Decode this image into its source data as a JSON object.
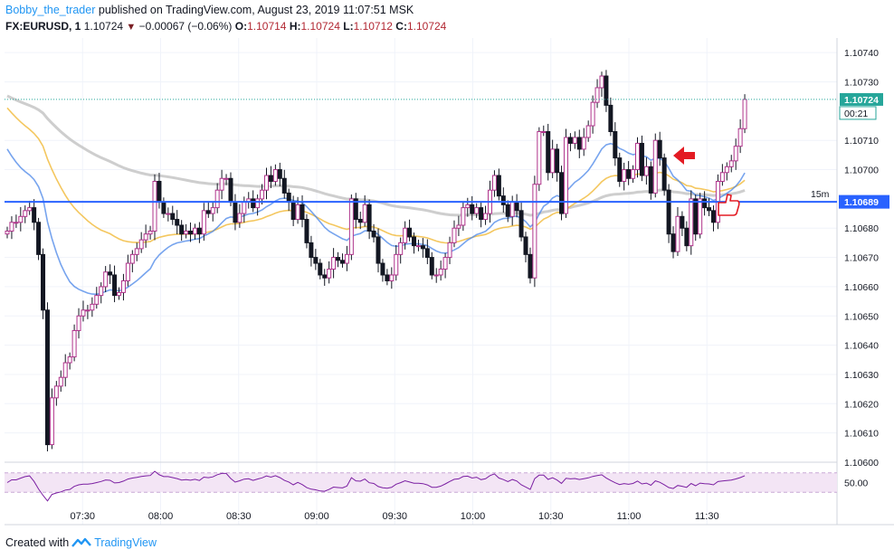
{
  "header": {
    "author": "Bobby_the_trader",
    "published_text": "published on TradingView.com, August 23, 2019 11:07:51 MSK",
    "symbol": "FX:EURUSD, 1",
    "last": "1.10724",
    "change": "−0.00067 (−0.06%)",
    "o_label": "O:",
    "o_value": "1.10714",
    "h_label": "H:",
    "h_value": "1.10724",
    "l_label": "L:",
    "l_value": "1.10712",
    "c_label": "C:",
    "c_value": "1.10724"
  },
  "footer": {
    "created_with": "Created with",
    "brand": "TradingView"
  },
  "colors": {
    "candle_body": "#131722",
    "candle_accent": "#b0348c",
    "hline": "#2962ff",
    "last_line": "#26a69a",
    "ma_fast": "#4a86e8",
    "ma_mid": "#f0b429",
    "ma_slow": "#bdbdbd",
    "rsi": "#7b1fa2",
    "rsi_band": "#f3e5f5",
    "arrow": "#e31b23"
  },
  "chart_data": {
    "type": "candlestick",
    "price_axis": {
      "ticks": [
        "1.10740",
        "1.10730",
        "1.10710",
        "1.10700",
        "1.10680",
        "1.10670",
        "1.10660",
        "1.10650",
        "1.10640",
        "1.10630",
        "1.10620",
        "1.10610",
        "1.10600"
      ],
      "range": [
        1.106,
        1.10745
      ]
    },
    "time_axis": {
      "ticks": [
        "07:30",
        "08:00",
        "08:30",
        "09:00",
        "09:30",
        "10:00",
        "10:30",
        "11:00",
        "11:30"
      ],
      "range_minutes": [
        420,
        740
      ]
    },
    "last_price_label": "1.10724",
    "last_price_countdown": "00:21",
    "horizontal_line": {
      "price": 1.10689,
      "label": "1.10689",
      "timeframe": "15m"
    },
    "rsi": {
      "tick": "50.00",
      "upper": 70,
      "lower": 30
    },
    "annotations": [
      "arrow pointing left at ~10:48",
      "thumbs-up marker at ~11:00 near 1.10689"
    ],
    "closes": [
      1.10679,
      1.10682,
      1.10682,
      1.10684,
      1.10686,
      1.10687,
      1.10682,
      1.10671,
      1.10652,
      1.10606,
      1.10622,
      1.10626,
      1.10629,
      1.10634,
      1.10636,
      1.10645,
      1.1065,
      1.10652,
      1.10652,
      1.10654,
      1.10657,
      1.1066,
      1.10665,
      1.10664,
      1.10657,
      1.10658,
      1.10662,
      1.10668,
      1.10671,
      1.10673,
      1.10676,
      1.10678,
      1.10679,
      1.10696,
      1.10689,
      1.10685,
      1.10685,
      1.10683,
      1.10681,
      1.10678,
      1.10679,
      1.10678,
      1.1068,
      1.10678,
      1.10686,
      1.10685,
      1.10687,
      1.10693,
      1.10697,
      1.10697,
      1.10689,
      1.10682,
      1.10685,
      1.10689,
      1.1069,
      1.10687,
      1.1069,
      1.10693,
      1.10698,
      1.10696,
      1.107,
      1.10697,
      1.10692,
      1.10689,
      1.10683,
      1.10688,
      1.10683,
      1.10675,
      1.1067,
      1.10668,
      1.10664,
      1.10663,
      1.10666,
      1.1067,
      1.10669,
      1.10668,
      1.10671,
      1.1069,
      1.10683,
      1.10682,
      1.10688,
      1.10679,
      1.10677,
      1.10668,
      1.10664,
      1.10662,
      1.10664,
      1.10671,
      1.10675,
      1.1068,
      1.10677,
      1.10674,
      1.10674,
      1.10673,
      1.1067,
      1.10664,
      1.10664,
      1.10666,
      1.1067,
      1.10675,
      1.1068,
      1.10681,
      1.10687,
      1.10688,
      1.10685,
      1.10687,
      1.10683,
      1.10685,
      1.10693,
      1.10698,
      1.10691,
      1.10688,
      1.10684,
      1.10689,
      1.10686,
      1.10677,
      1.10671,
      1.10663,
      1.10695,
      1.10713,
      1.10713,
      1.10699,
      1.10707,
      1.10699,
      1.10685,
      1.10711,
      1.10709,
      1.10711,
      1.10707,
      1.10711,
      1.10715,
      1.10723,
      1.10728,
      1.10732,
      1.10722,
      1.10713,
      1.10704,
      1.10696,
      1.107,
      1.10697,
      1.107,
      1.10709,
      1.10698,
      1.10701,
      1.10692,
      1.1071,
      1.10704,
      1.10693,
      1.10678,
      1.10672,
      1.10684,
      1.1068,
      1.10674,
      1.1069,
      1.10678,
      1.1069,
      1.10687,
      1.10686,
      1.10682,
      1.10696,
      1.10699,
      1.10701,
      1.10703,
      1.10708,
      1.10714,
      1.10724
    ]
  }
}
